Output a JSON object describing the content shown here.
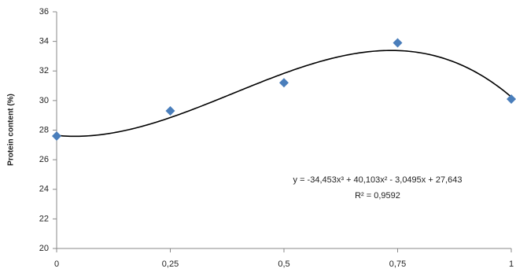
{
  "chart_data": {
    "type": "scatter",
    "y_label": "Protein content (%)",
    "x": [
      0,
      0.25,
      0.5,
      0.75,
      1
    ],
    "series": [
      {
        "color": "#4a7ebb",
        "values": [
          27.6,
          29.3,
          31.2,
          33.9,
          30.1
        ]
      }
    ],
    "xlim": [
      0,
      1
    ],
    "xticks": [
      0,
      {
        "value": 0.25,
        "label": "0,25"
      },
      {
        "value": 0.5,
        "label": "0,5"
      },
      {
        "value": 0.75,
        "label": "0,75"
      },
      1
    ],
    "ylim": [
      20,
      36
    ],
    "yticks": [
      20,
      22,
      24,
      26,
      28,
      30,
      32,
      34,
      36
    ],
    "grid": false,
    "trendline": {
      "color": "#000000",
      "equation": "y = -34,453x³ + 40,103x² - 3,0495x + 27,643",
      "r2": "R² = 0,9592",
      "coefficients": [
        27.643,
        -3.0495,
        40.103,
        -34.453
      ]
    }
  }
}
